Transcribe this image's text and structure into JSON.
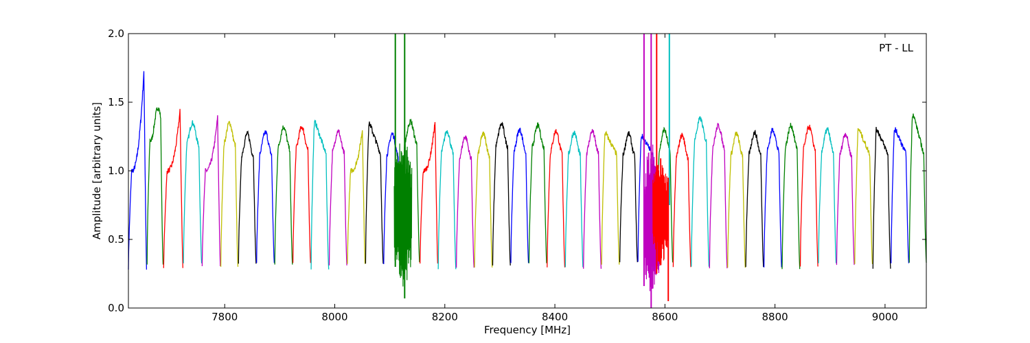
{
  "chart_data": {
    "type": "line",
    "title": "",
    "annotation": "PT - LL",
    "annotation_position": "top-right",
    "xlabel": "Frequency [MHz]",
    "ylabel": "Amplitude [arbitrary units]",
    "xlim": [
      7625,
      9075
    ],
    "ylim": [
      0,
      2.0
    ],
    "xticks": [
      7800,
      8000,
      8200,
      8400,
      8600,
      8800,
      9000
    ],
    "yticks": [
      0.0,
      0.5,
      1.0,
      1.5,
      2.0
    ],
    "xtick_labels": [
      "7800",
      "8000",
      "8200",
      "8400",
      "8600",
      "8800",
      "9000"
    ],
    "ytick_labels": [
      "0.0",
      "0.5",
      "1.0",
      "1.5",
      "2.0"
    ],
    "grid": false,
    "legend": "none",
    "color_cycle": [
      "#0000ff",
      "#008000",
      "#ff0000",
      "#00bfbf",
      "#bf00bf",
      "#bfbf00",
      "#000000"
    ],
    "series": [
      {
        "color": "#0000ff",
        "start": 7625,
        "end": 7658,
        "peak": 1.72,
        "shape": "rise"
      },
      {
        "color": "#008000",
        "start": 7659,
        "end": 7688,
        "peak": 1.34,
        "shape": "double"
      },
      {
        "color": "#ff0000",
        "start": 7689,
        "end": 7724,
        "peak": 1.44,
        "shape": "rise"
      },
      {
        "color": "#00bfbf",
        "start": 7725,
        "end": 7758,
        "peak": 1.29,
        "shape": "flat"
      },
      {
        "color": "#bf00bf",
        "start": 7759,
        "end": 7792,
        "peak": 1.39,
        "shape": "rise"
      },
      {
        "color": "#bfbf00",
        "start": 7793,
        "end": 7824,
        "peak": 1.29,
        "shape": "flat"
      },
      {
        "color": "#000000",
        "start": 7825,
        "end": 7857,
        "peak": 1.21,
        "shape": "flat"
      },
      {
        "color": "#0000ff",
        "start": 7858,
        "end": 7890,
        "peak": 1.22,
        "shape": "flat"
      },
      {
        "color": "#008000",
        "start": 7891,
        "end": 7923,
        "peak": 1.26,
        "shape": "flat"
      },
      {
        "color": "#ff0000",
        "start": 7924,
        "end": 7956,
        "peak": 1.26,
        "shape": "flat"
      },
      {
        "color": "#00bfbf",
        "start": 7957,
        "end": 7989,
        "peak": 1.35,
        "shape": "fall"
      },
      {
        "color": "#bf00bf",
        "start": 7990,
        "end": 8022,
        "peak": 1.23,
        "shape": "flat"
      },
      {
        "color": "#bfbf00",
        "start": 8023,
        "end": 8055,
        "peak": 1.3,
        "shape": "rise"
      },
      {
        "color": "#000000",
        "start": 8056,
        "end": 8088,
        "peak": 1.34,
        "shape": "fall"
      },
      {
        "color": "#0000ff",
        "start": 8089,
        "end": 8120,
        "peak": 1.21,
        "shape": "flat"
      },
      {
        "color": "#008000",
        "start": 8121,
        "end": 8154,
        "peak": 1.3,
        "shape": "flat"
      },
      {
        "color": "#ff0000",
        "start": 8155,
        "end": 8187,
        "peak": 1.36,
        "shape": "rise"
      },
      {
        "color": "#00bfbf",
        "start": 8188,
        "end": 8220,
        "peak": 1.23,
        "shape": "flat"
      },
      {
        "color": "#bf00bf",
        "start": 8221,
        "end": 8253,
        "peak": 1.19,
        "shape": "flat"
      },
      {
        "color": "#bfbf00",
        "start": 8254,
        "end": 8286,
        "peak": 1.21,
        "shape": "flat"
      },
      {
        "color": "#000000",
        "start": 8287,
        "end": 8319,
        "peak": 1.28,
        "shape": "flat"
      },
      {
        "color": "#0000ff",
        "start": 8320,
        "end": 8352,
        "peak": 1.24,
        "shape": "flat"
      },
      {
        "color": "#008000",
        "start": 8353,
        "end": 8385,
        "peak": 1.27,
        "shape": "flat"
      },
      {
        "color": "#ff0000",
        "start": 8386,
        "end": 8418,
        "peak": 1.23,
        "shape": "flat"
      },
      {
        "color": "#00bfbf",
        "start": 8419,
        "end": 8451,
        "peak": 1.22,
        "shape": "flat"
      },
      {
        "color": "#bf00bf",
        "start": 8452,
        "end": 8484,
        "peak": 1.23,
        "shape": "flat"
      },
      {
        "color": "#bfbf00",
        "start": 8485,
        "end": 8517,
        "peak": 1.27,
        "shape": "fall"
      },
      {
        "color": "#000000",
        "start": 8518,
        "end": 8550,
        "peak": 1.21,
        "shape": "flat"
      },
      {
        "color": "#0000ff",
        "start": 8551,
        "end": 8583,
        "peak": 1.25,
        "shape": "fall"
      },
      {
        "color": "#008000",
        "start": 8584,
        "end": 8614,
        "peak": 1.24,
        "shape": "flat"
      },
      {
        "color": "#ff0000",
        "start": 8615,
        "end": 8647,
        "peak": 1.2,
        "shape": "flat"
      },
      {
        "color": "#00bfbf",
        "start": 8648,
        "end": 8680,
        "peak": 1.32,
        "shape": "flat"
      },
      {
        "color": "#bf00bf",
        "start": 8681,
        "end": 8713,
        "peak": 1.27,
        "shape": "flat"
      },
      {
        "color": "#bfbf00",
        "start": 8714,
        "end": 8746,
        "peak": 1.21,
        "shape": "flat"
      },
      {
        "color": "#000000",
        "start": 8747,
        "end": 8779,
        "peak": 1.22,
        "shape": "flat"
      },
      {
        "color": "#0000ff",
        "start": 8780,
        "end": 8812,
        "peak": 1.24,
        "shape": "flat"
      },
      {
        "color": "#008000",
        "start": 8813,
        "end": 8845,
        "peak": 1.27,
        "shape": "flat"
      },
      {
        "color": "#ff0000",
        "start": 8846,
        "end": 8878,
        "peak": 1.26,
        "shape": "flat"
      },
      {
        "color": "#00bfbf",
        "start": 8879,
        "end": 8911,
        "peak": 1.24,
        "shape": "flat"
      },
      {
        "color": "#bf00bf",
        "start": 8912,
        "end": 8944,
        "peak": 1.21,
        "shape": "flat"
      },
      {
        "color": "#bfbf00",
        "start": 8945,
        "end": 8977,
        "peak": 1.3,
        "shape": "fall"
      },
      {
        "color": "#000000",
        "start": 8978,
        "end": 9010,
        "peak": 1.3,
        "shape": "fall"
      },
      {
        "color": "#0000ff",
        "start": 9011,
        "end": 9043,
        "peak": 1.3,
        "shape": "fall"
      },
      {
        "color": "#008000",
        "start": 9044,
        "end": 9075,
        "peak": 1.41,
        "shape": "fall"
      }
    ],
    "spikes": [
      {
        "color": "#008000",
        "x": 8110,
        "ymin": 0.3,
        "ymax": 2.0
      },
      {
        "color": "#008000",
        "x": 8127,
        "ymin": 0.07,
        "ymax": 2.0
      },
      {
        "color": "#bf00bf",
        "x": 8562,
        "ymin": 0.16,
        "ymax": 2.0
      },
      {
        "color": "#bf00bf",
        "x": 8575,
        "ymin": 0.0,
        "ymax": 2.0
      },
      {
        "color": "#ff0000",
        "x": 8585,
        "ymin": 0.25,
        "ymax": 2.0
      },
      {
        "color": "#00bfbf",
        "x": 8608,
        "ymin": 0.75,
        "ymax": 2.0
      },
      {
        "color": "#ff0000",
        "x": 8606,
        "ymin": 0.05,
        "ymax": 0.95
      }
    ]
  }
}
